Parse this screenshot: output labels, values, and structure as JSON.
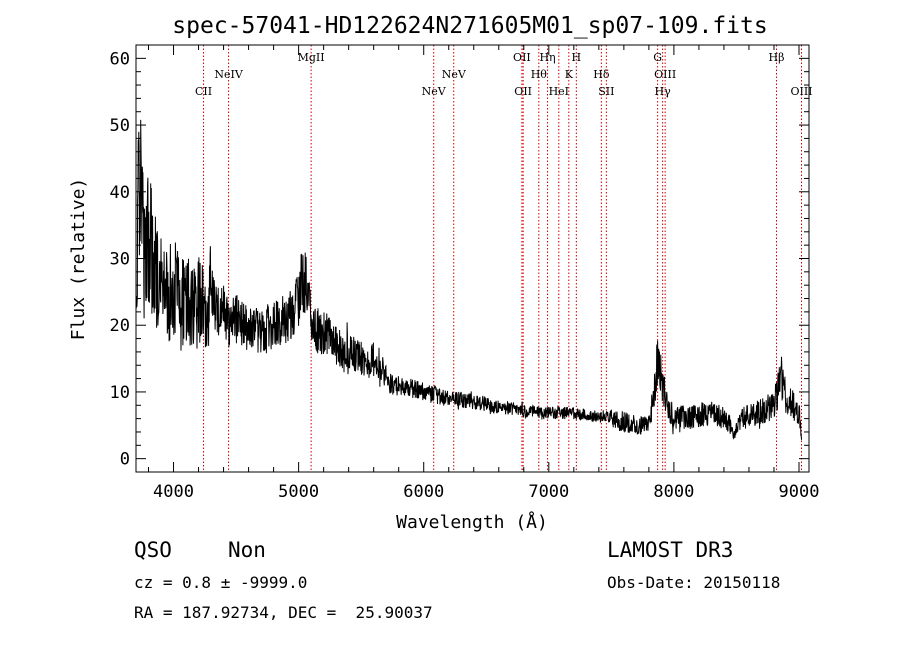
{
  "chart_data": {
    "type": "line",
    "title": "spec-57041-HD122624N271605M01_sp07-109.fits",
    "xlabel": "Wavelength (Å)",
    "ylabel": "Flux (relative)",
    "xlim": [
      3700,
      9080
    ],
    "ylim": [
      -2,
      62
    ],
    "xticks": [
      4000,
      5000,
      6000,
      7000,
      8000,
      9000
    ],
    "yticks": [
      0,
      10,
      20,
      30,
      40,
      50,
      60
    ],
    "spectrum_anchors": {
      "x": [
        3700,
        3720,
        3740,
        3760,
        3800,
        3850,
        3900,
        3950,
        4000,
        4050,
        4100,
        4150,
        4200,
        4250,
        4300,
        4350,
        4400,
        4450,
        4500,
        4600,
        4700,
        4800,
        4900,
        4950,
        5000,
        5030,
        5060,
        5080,
        5100,
        5130,
        5160,
        5200,
        5300,
        5400,
        5500,
        5550,
        5600,
        5650,
        5700,
        5750,
        5800,
        5900,
        6000,
        6100,
        6200,
        6300,
        6400,
        6500,
        6600,
        6700,
        6750,
        6800,
        6850,
        6900,
        6950,
        7000,
        7100,
        7200,
        7300,
        7400,
        7450,
        7500,
        7600,
        7700,
        7800,
        7850,
        7870,
        7900,
        7950,
        8000,
        8050,
        8100,
        8200,
        8300,
        8400,
        8450,
        8480,
        8500,
        8550,
        8600,
        8700,
        8800,
        8830,
        8860,
        8900,
        8950,
        9000,
        9020
      ],
      "y": [
        25,
        38,
        42,
        30,
        33,
        30,
        26,
        24,
        26,
        23,
        24,
        22,
        23,
        22,
        25,
        22,
        22,
        20,
        21,
        20,
        19,
        20,
        21,
        22,
        24,
        27,
        26,
        24,
        22,
        20,
        19,
        19,
        17,
        16,
        15,
        14,
        15,
        14,
        12,
        11,
        11,
        10.5,
        10,
        9.5,
        9,
        8.8,
        8.5,
        8.2,
        7.8,
        7.5,
        7.3,
        7.2,
        7,
        7,
        6.8,
        7,
        6.8,
        6.8,
        6.5,
        6.3,
        6.5,
        6,
        5.5,
        5,
        5,
        11,
        15,
        12,
        8,
        6,
        6.5,
        6,
        6.5,
        7,
        6,
        5,
        3,
        5,
        6,
        6.5,
        7,
        8,
        10,
        12,
        9,
        8,
        7,
        3
      ]
    },
    "noise_seed": 57041,
    "lines": [
      {
        "name": "CII",
        "x": 4240,
        "row": 2
      },
      {
        "name": "NeIV",
        "x": 4440,
        "row": 1
      },
      {
        "name": "MgII",
        "x": 5100,
        "row": 0
      },
      {
        "name": "NeV",
        "x": 6080,
        "row": 2
      },
      {
        "name": "NeV",
        "x": 6240,
        "row": 1
      },
      {
        "name": "OII",
        "x": 6785,
        "row": 0
      },
      {
        "name": "OII",
        "x": 6795,
        "row": 2
      },
      {
        "name": "Hθ",
        "x": 6920,
        "row": 1
      },
      {
        "name": "Hη",
        "x": 6990,
        "row": 0
      },
      {
        "name": "HeI",
        "x": 7080,
        "row": 2
      },
      {
        "name": "K",
        "x": 7160,
        "row": 1
      },
      {
        "name": "H",
        "x": 7220,
        "row": 0
      },
      {
        "name": "Hδ",
        "x": 7420,
        "row": 1
      },
      {
        "name": "SII",
        "x": 7460,
        "row": 2
      },
      {
        "name": "G",
        "x": 7870,
        "row": 0
      },
      {
        "name": "OIII",
        "x": 7930,
        "row": 1
      },
      {
        "name": "Hγ",
        "x": 7910,
        "row": 2
      },
      {
        "name": "Hβ",
        "x": 8820,
        "row": 0
      },
      {
        "name": "OIII",
        "x": 9020,
        "row": 2
      }
    ],
    "colors": {
      "spectrum": "#000000",
      "lines": "#d00000",
      "axes": "#000000"
    }
  },
  "info": {
    "class_label": "QSO",
    "subclass_label": "Non",
    "cz_text": "cz = 0.8 ± -9999.0",
    "coords_text": "RA = 187.92734, DEC =  25.90037",
    "survey_text": "LAMOST DR3",
    "obs_date_text": "Obs-Date: 20150118"
  }
}
